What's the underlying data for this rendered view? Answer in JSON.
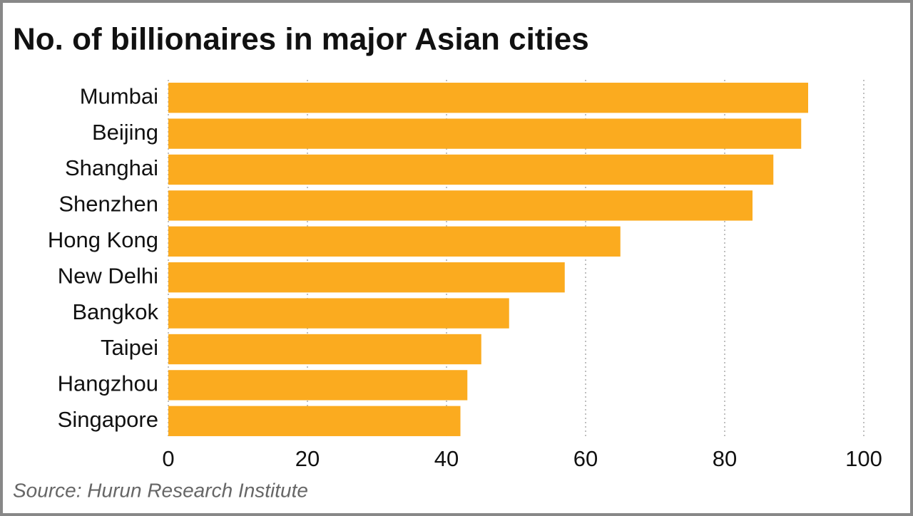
{
  "chart_data": {
    "type": "hbar",
    "title": "No. of billionaires in major Asian cities",
    "source": "Source: Hurun Research Institute",
    "categories": [
      "Mumbai",
      "Beijing",
      "Shanghai",
      "Shenzhen",
      "Hong Kong",
      "New Delhi",
      "Bangkok",
      "Taipei",
      "Hangzhou",
      "Singapore"
    ],
    "values": [
      92,
      91,
      87,
      84,
      65,
      57,
      49,
      45,
      43,
      42
    ],
    "color": "#fbab1f",
    "xlim": [
      0,
      100
    ],
    "xticks": [
      0,
      20,
      40,
      60,
      80,
      100
    ],
    "grid": true
  }
}
